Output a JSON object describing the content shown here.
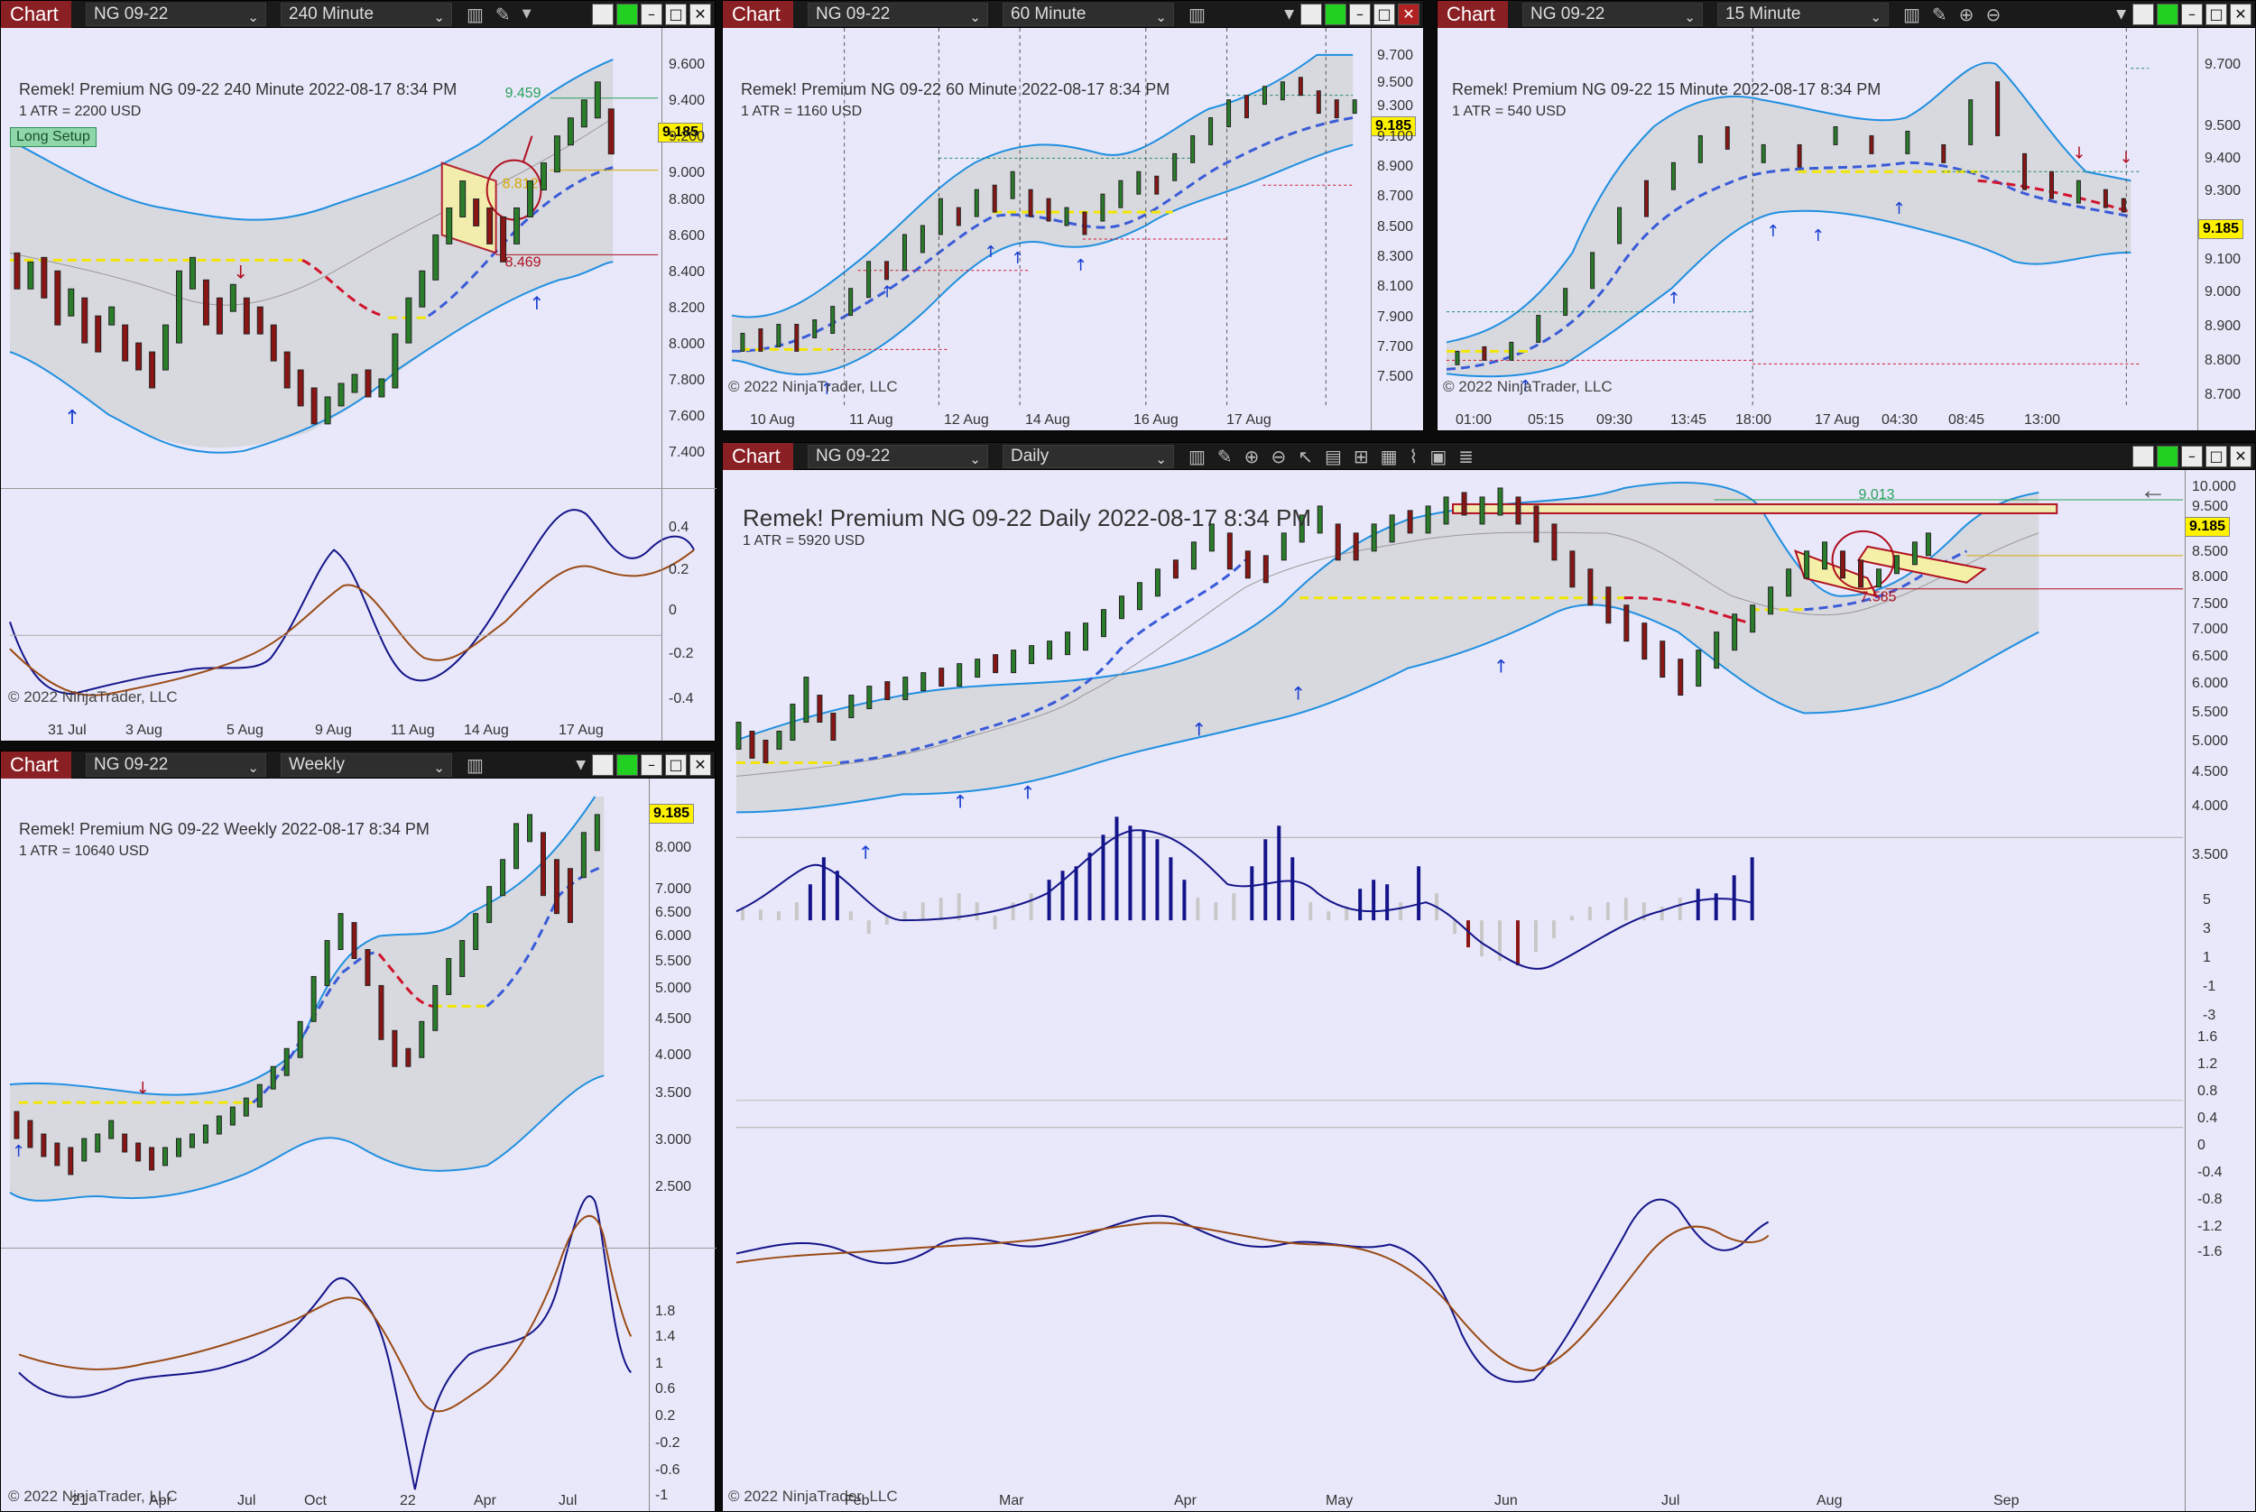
{
  "windows": {
    "w240": {
      "tag": "Chart",
      "instrument": "NG 09-22",
      "interval": "240 Minute",
      "header": "Remek!  Premium  NG 09-22  240 Minute  2022-08-17 8:34 PM",
      "atr": "1 ATR = 2200 USD",
      "setup_badge": "Long Setup",
      "price": "9.185",
      "price_high": "9.459",
      "price_mid": "8.812",
      "price_low": "8.469",
      "y_ticks": [
        "9.600",
        "9.400",
        "9.200",
        "9.000",
        "8.800",
        "8.600",
        "8.400",
        "8.200",
        "8.000",
        "7.800",
        "7.600",
        "7.400"
      ],
      "osc_ticks": [
        "0.4",
        "0.2",
        "0",
        "-0.2",
        "-0.4"
      ],
      "x_ticks": [
        "31 Jul",
        "3 Aug",
        "5 Aug",
        "9 Aug",
        "11 Aug",
        "14 Aug",
        "17 Aug"
      ],
      "copyright": "© 2022 NinjaTrader, LLC"
    },
    "w60": {
      "tag": "Chart",
      "instrument": "NG 09-22",
      "interval": "60 Minute",
      "header": "Remek!  Premium  NG 09-22  60 Minute  2022-08-17 8:34 PM",
      "atr": "1 ATR = 1160 USD",
      "price": "9.185",
      "y_ticks": [
        "9.700",
        "9.500",
        "9.300",
        "9.100",
        "8.900",
        "8.700",
        "8.500",
        "8.300",
        "8.100",
        "7.900",
        "7.700",
        "7.500"
      ],
      "x_ticks": [
        "10 Aug",
        "11 Aug",
        "12 Aug",
        "14 Aug",
        "16 Aug",
        "17 Aug"
      ],
      "copyright": "© 2022 NinjaTrader, LLC"
    },
    "w15": {
      "tag": "Chart",
      "instrument": "NG 09-22",
      "interval": "15 Minute",
      "header": "Remek!  Premium  NG 09-22  15 Minute  2022-08-17 8:34 PM",
      "atr": "1 ATR = 540 USD",
      "price": "9.185",
      "y_ticks": [
        "9.700",
        "9.500",
        "9.400",
        "9.300",
        "9.100",
        "9.000",
        "8.900",
        "8.800",
        "8.700"
      ],
      "x_ticks": [
        "01:00",
        "05:15",
        "09:30",
        "13:45",
        "18:00",
        "17 Aug",
        "04:30",
        "08:45",
        "13:00"
      ],
      "copyright": "© 2022 NinjaTrader, LLC"
    },
    "wWeekly": {
      "tag": "Chart",
      "instrument": "NG 09-22",
      "interval": "Weekly",
      "header": "Remek!  Premium  NG 09-22  Weekly  2022-08-17 8:34 PM",
      "atr": "1 ATR = 10640 USD",
      "price": "9.185",
      "y_ticks": [
        "8.000",
        "7.000",
        "6.500",
        "6.000",
        "5.500",
        "5.000",
        "4.500",
        "4.000",
        "3.500",
        "3.000",
        "2.500"
      ],
      "osc_ticks": [
        "1.8",
        "1.4",
        "1",
        "0.6",
        "0.2",
        "-0.2",
        "-0.6",
        "-1"
      ],
      "x_ticks": [
        "21",
        "Apr",
        "Jul",
        "Oct",
        "22",
        "Apr",
        "Jul"
      ],
      "copyright": "© 2022 NinjaTrader, LLC"
    },
    "wDaily": {
      "tag": "Chart",
      "instrument": "NG 09-22",
      "interval": "Daily",
      "header": "Remek!  Premium  NG 09-22  Daily  2022-08-17 8:34 PM",
      "atr": "1 ATR = 5920 USD",
      "price": "9.185",
      "price_high": "9.013",
      "price_low": "7.585",
      "y_ticks": [
        "10.000",
        "9.500",
        "9.185",
        "8.500",
        "8.000",
        "7.500",
        "7.000",
        "6.500",
        "6.000",
        "5.500",
        "5.000",
        "4.500",
        "4.000",
        "3.500"
      ],
      "hist_ticks": [
        "5",
        "3",
        "1",
        "-1",
        "-3"
      ],
      "osc_ticks": [
        "1.6",
        "1.2",
        "0.8",
        "0.4",
        "0",
        "-0.4",
        "-0.8",
        "-1.2",
        "-1.6"
      ],
      "x_ticks": [
        "Feb",
        "Mar",
        "Apr",
        "May",
        "Jun",
        "Jul",
        "Aug",
        "Sep"
      ],
      "copyright": "© 2022 NinjaTrader, LLC"
    }
  },
  "colors": {
    "canvas": "#e8e8fa",
    "band": "#d8d8df",
    "up": "#2a7d2a",
    "down": "#8a1515",
    "upper_band": "#1f8fe0",
    "trend": "#3a5bd8",
    "tag": "#8a1f24",
    "price_tag": "#fff200"
  }
}
